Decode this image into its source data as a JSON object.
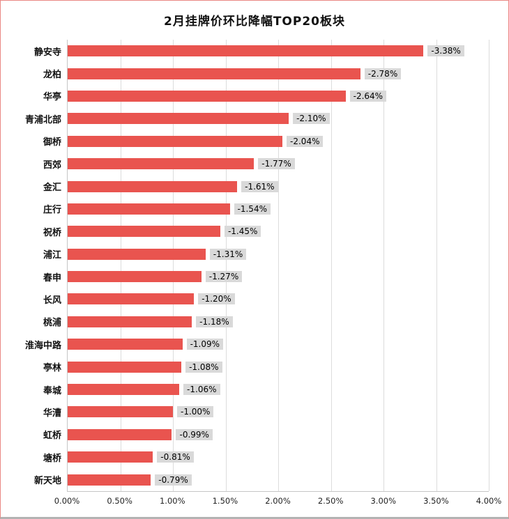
{
  "chart_data": {
    "type": "bar",
    "orientation": "horizontal",
    "title": "2月挂牌价环比降幅TOP20板块",
    "categories": [
      "静安寺",
      "龙柏",
      "华亭",
      "青浦北部",
      "御桥",
      "西郊",
      "金汇",
      "庄行",
      "祝桥",
      "浦江",
      "春申",
      "长风",
      "桃浦",
      "淮海中路",
      "亭林",
      "奉城",
      "华漕",
      "虹桥",
      "塘桥",
      "新天地"
    ],
    "values": [
      -3.38,
      -2.78,
      -2.64,
      -2.1,
      -2.04,
      -1.77,
      -1.61,
      -1.54,
      -1.45,
      -1.31,
      -1.27,
      -1.2,
      -1.18,
      -1.09,
      -1.08,
      -1.06,
      -1.0,
      -0.99,
      -0.81,
      -0.79
    ],
    "labels": [
      "-3.38%",
      "-2.78%",
      "-2.64%",
      "-2.10%",
      "-2.04%",
      "-1.77%",
      "-1.61%",
      "-1.54%",
      "-1.45%",
      "-1.31%",
      "-1.27%",
      "-1.20%",
      "-1.18%",
      "-1.09%",
      "-1.08%",
      "-1.06%",
      "-1.00%",
      "-0.99%",
      "-0.81%",
      "-0.79%"
    ],
    "xlabel": "",
    "ylabel": "",
    "xlim": [
      0,
      4
    ],
    "x_ticks": [
      "0.00%",
      "0.50%",
      "1.00%",
      "1.50%",
      "2.00%",
      "2.50%",
      "3.00%",
      "3.50%",
      "4.00%"
    ],
    "bar_color": "#e9544f",
    "label_bg": "#d9d9d9",
    "grid": true,
    "legend": false
  }
}
